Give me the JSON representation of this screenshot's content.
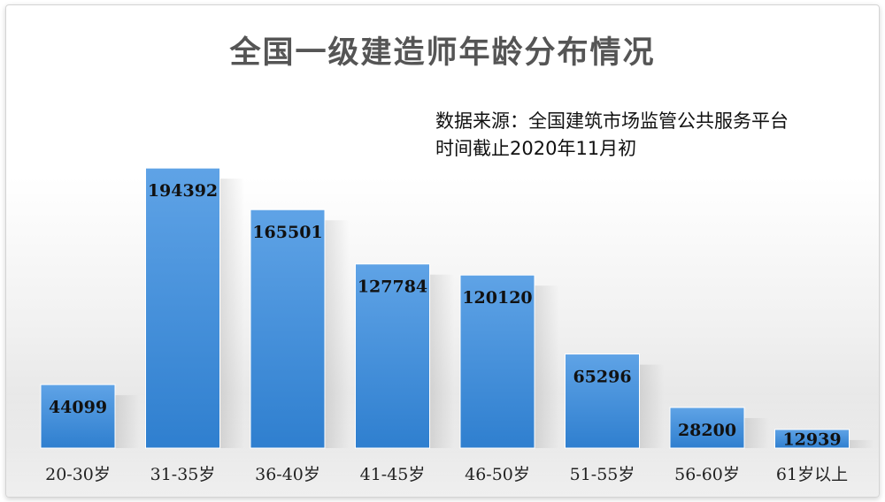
{
  "chart_data": {
    "type": "bar",
    "title": "全国一级建造师年龄分布情况",
    "annotations": [
      "数据来源：全国建筑市场监管公共服务平台",
      "时间截止2020年11月初"
    ],
    "categories": [
      "20-30岁",
      "31-35岁",
      "36-40岁",
      "41-45岁",
      "46-50岁",
      "51-55岁",
      "56-60岁",
      "61岁以上"
    ],
    "values": [
      44099,
      194392,
      165501,
      127784,
      120120,
      65296,
      28200,
      12939
    ],
    "xlabel": "",
    "ylabel": "",
    "ylim": [
      0,
      200000
    ],
    "grid": false,
    "legend": "none",
    "colors": {
      "bar_top": "#5fa3e6",
      "bar_bottom": "#2f7fcf",
      "value_text": "#111111",
      "category_text": "#222222"
    }
  }
}
